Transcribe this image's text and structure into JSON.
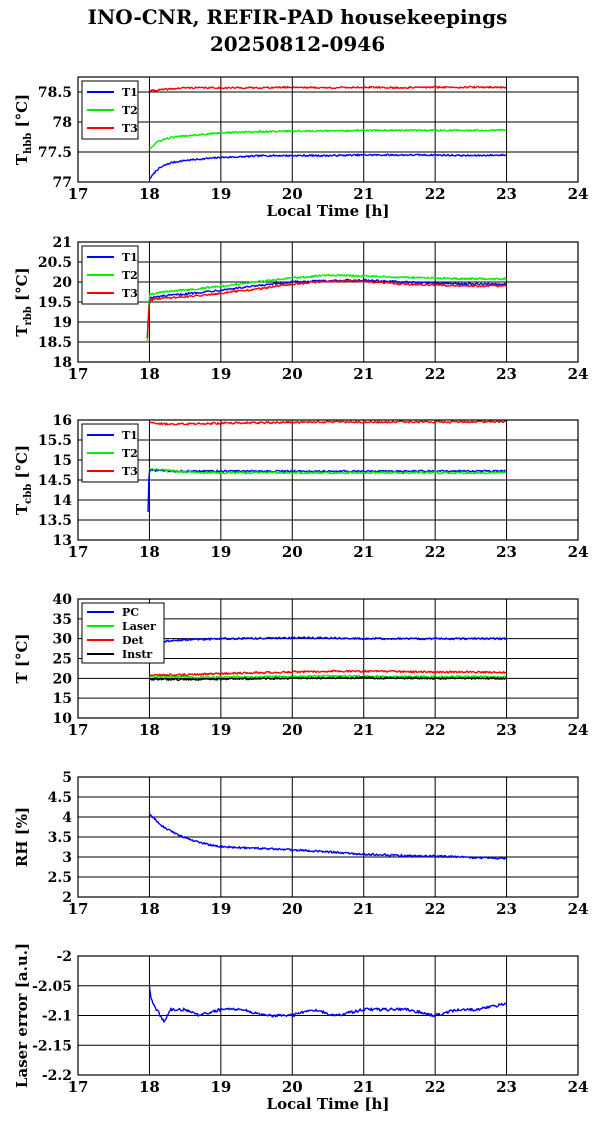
{
  "title": {
    "line1": "INO-CNR, REFIR-PAD housekeepings",
    "line2": "20250812-0946"
  },
  "colors": {
    "blue": "#0000ff",
    "green": "#00ee00",
    "red": "#ff0000",
    "black": "#000000"
  },
  "chart_data": [
    {
      "type": "line",
      "ylabel_main": "T",
      "ylabel_sub": "hbb",
      "ylabel_unit": "[°C]",
      "xlabel": "Local Time [h]",
      "xlim": [
        17,
        24
      ],
      "ylim": [
        77,
        78.75
      ],
      "xticks": [
        "17",
        "18",
        "19",
        "20",
        "21",
        "22",
        "23",
        "24"
      ],
      "yticks": [
        77,
        77.5,
        78,
        78.5
      ],
      "ytick_labels": [
        "77",
        "77.5",
        "78",
        "78.5"
      ],
      "grid": true,
      "legend": "top-left",
      "series": [
        {
          "name": "T1",
          "color": "#0000ff",
          "x": [
            18.0,
            18.05,
            18.1,
            18.2,
            18.3,
            18.5,
            18.7,
            19.0,
            19.3,
            19.6,
            20.0,
            20.5,
            21.0,
            21.5,
            22.0,
            22.5,
            23.0
          ],
          "y": [
            77.05,
            77.12,
            77.2,
            77.27,
            77.32,
            77.36,
            77.38,
            77.41,
            77.42,
            77.44,
            77.44,
            77.44,
            77.45,
            77.45,
            77.45,
            77.44,
            77.45
          ]
        },
        {
          "name": "T2",
          "color": "#00ee00",
          "x": [
            18.0,
            18.05,
            18.1,
            18.2,
            18.3,
            18.5,
            18.7,
            19.0,
            19.3,
            19.6,
            20.0,
            20.5,
            21.0,
            21.5,
            22.0,
            22.5,
            23.0
          ],
          "y": [
            77.55,
            77.6,
            77.66,
            77.71,
            77.74,
            77.77,
            77.79,
            77.82,
            77.83,
            77.84,
            77.85,
            77.85,
            77.86,
            77.86,
            77.86,
            77.86,
            77.87
          ]
        },
        {
          "name": "T3",
          "color": "#ff0000",
          "x": [
            18.0,
            18.5,
            19.0,
            19.5,
            20.0,
            20.5,
            21.0,
            21.5,
            22.0,
            22.5,
            23.0
          ],
          "y": [
            78.52,
            78.57,
            78.57,
            78.57,
            78.58,
            78.57,
            78.58,
            78.57,
            78.58,
            78.58,
            78.58
          ]
        }
      ]
    },
    {
      "type": "line",
      "ylabel_main": "T",
      "ylabel_sub": "rbb",
      "ylabel_unit": "[°C]",
      "xlabel": "",
      "xlim": [
        17,
        24
      ],
      "ylim": [
        18,
        21
      ],
      "xticks": [
        "17",
        "18",
        "19",
        "20",
        "21",
        "22",
        "23",
        "24"
      ],
      "yticks": [
        18,
        18.5,
        19,
        19.5,
        20,
        20.5,
        21
      ],
      "ytick_labels": [
        "18",
        "18.5",
        "19",
        "19.5",
        "20",
        "20.5",
        "21"
      ],
      "grid": true,
      "legend": "top-left",
      "series": [
        {
          "name": "T1",
          "color": "#0000ff",
          "x": [
            17.97,
            17.99,
            18.0,
            18.2,
            18.5,
            19.0,
            19.5,
            20.0,
            20.5,
            21.0,
            21.5,
            22.0,
            22.5,
            23.0
          ],
          "y": [
            18.6,
            19.3,
            19.6,
            19.65,
            19.7,
            19.8,
            19.9,
            20.0,
            20.03,
            20.05,
            20.0,
            19.97,
            19.95,
            19.95
          ]
        },
        {
          "name": "T2",
          "color": "#00ee00",
          "x": [
            17.97,
            17.99,
            18.0,
            18.2,
            18.5,
            19.0,
            19.5,
            20.0,
            20.5,
            21.0,
            21.5,
            22.0,
            22.5,
            23.0
          ],
          "y": [
            18.5,
            19.4,
            19.7,
            19.75,
            19.8,
            19.9,
            20.0,
            20.1,
            20.17,
            20.15,
            20.12,
            20.1,
            20.08,
            20.08
          ]
        },
        {
          "name": "T3",
          "color": "#ff0000",
          "x": [
            17.97,
            17.99,
            18.0,
            18.2,
            18.5,
            19.0,
            19.5,
            20.0,
            20.5,
            21.0,
            21.5,
            22.0,
            22.5,
            23.0
          ],
          "y": [
            18.6,
            19.2,
            19.55,
            19.6,
            19.63,
            19.72,
            19.82,
            19.95,
            20.02,
            20.02,
            19.95,
            19.92,
            19.9,
            19.9
          ]
        }
      ]
    },
    {
      "type": "line",
      "ylabel_main": "T",
      "ylabel_sub": "cbb",
      "ylabel_unit": "[°C]",
      "xlabel": "",
      "xlim": [
        17,
        24
      ],
      "ylim": [
        13,
        16
      ],
      "xticks": [
        "17",
        "18",
        "19",
        "20",
        "21",
        "22",
        "23",
        "24"
      ],
      "yticks": [
        13,
        13.5,
        14,
        14.5,
        15,
        15.5,
        16
      ],
      "ytick_labels": [
        "13",
        "13.5",
        "14",
        "14.5",
        "15",
        "15.5",
        "16"
      ],
      "grid": true,
      "legend": "top-left",
      "series": [
        {
          "name": "T1",
          "color": "#0000ff",
          "x": [
            17.98,
            17.99,
            18.0,
            18.2,
            18.5,
            19.0,
            19.5,
            20.0,
            20.5,
            21.0,
            21.5,
            22.0,
            22.5,
            23.0
          ],
          "y": [
            13.7,
            14.5,
            14.75,
            14.72,
            14.72,
            14.72,
            14.72,
            14.72,
            14.72,
            14.72,
            14.72,
            14.72,
            14.72,
            14.72
          ]
        },
        {
          "name": "T2",
          "color": "#00ee00",
          "x": [
            18.0,
            18.2,
            18.5,
            19.0,
            19.5,
            20.0,
            20.5,
            21.0,
            21.5,
            22.0,
            22.5,
            23.0
          ],
          "y": [
            14.78,
            14.75,
            14.7,
            14.68,
            14.68,
            14.68,
            14.68,
            14.68,
            14.68,
            14.68,
            14.68,
            14.68
          ]
        },
        {
          "name": "T3",
          "color": "#ff0000",
          "x": [
            18.0,
            18.2,
            18.5,
            19.0,
            19.5,
            20.0,
            20.5,
            21.0,
            21.5,
            22.0,
            22.5,
            23.0
          ],
          "y": [
            15.95,
            15.9,
            15.9,
            15.92,
            15.93,
            15.94,
            15.95,
            15.95,
            15.95,
            15.95,
            15.95,
            15.96
          ]
        }
      ]
    },
    {
      "type": "line",
      "ylabel_main": "T [°C]",
      "ylabel_sub": "",
      "ylabel_unit": "",
      "xlabel": "",
      "xlim": [
        17,
        24
      ],
      "ylim": [
        10,
        40
      ],
      "xticks": [
        "17",
        "18",
        "19",
        "20",
        "21",
        "22",
        "23",
        "24"
      ],
      "yticks": [
        10,
        15,
        20,
        25,
        30,
        35,
        40
      ],
      "ytick_labels": [
        "10",
        "15",
        "20",
        "25",
        "30",
        "35",
        "40"
      ],
      "grid": true,
      "legend": "top-left",
      "series": [
        {
          "name": "PC",
          "color": "#0000ff",
          "x": [
            18.0,
            18.3,
            18.6,
            19.0,
            19.5,
            20.0,
            20.5,
            21.0,
            21.5,
            22.0,
            22.5,
            23.0
          ],
          "y": [
            29.0,
            29.5,
            29.8,
            30.0,
            30.1,
            30.2,
            30.2,
            30.0,
            30.0,
            30.0,
            30.0,
            30.0
          ]
        },
        {
          "name": "Laser",
          "color": "#00ee00",
          "x": [
            18.0,
            18.5,
            19.0,
            19.5,
            20.0,
            20.5,
            21.0,
            21.5,
            22.0,
            22.5,
            23.0
          ],
          "y": [
            20.5,
            20.3,
            20.3,
            20.4,
            20.5,
            20.6,
            20.5,
            20.4,
            20.4,
            20.4,
            20.3
          ]
        },
        {
          "name": "Det",
          "color": "#ff0000",
          "x": [
            18.0,
            18.5,
            19.0,
            19.5,
            20.0,
            20.5,
            21.0,
            21.5,
            22.0,
            22.5,
            23.0
          ],
          "y": [
            20.8,
            20.9,
            21.2,
            21.4,
            21.6,
            21.8,
            21.8,
            21.7,
            21.6,
            21.6,
            21.5
          ]
        },
        {
          "name": "Instr",
          "color": "#000000",
          "x": [
            18.0,
            18.5,
            19.0,
            19.5,
            20.0,
            20.5,
            21.0,
            21.5,
            22.0,
            22.5,
            23.0
          ],
          "y": [
            19.8,
            19.7,
            19.8,
            19.9,
            20.0,
            20.1,
            20.1,
            20.1,
            20.0,
            20.0,
            20.0
          ]
        }
      ]
    },
    {
      "type": "line",
      "ylabel_main": "RH [%]",
      "ylabel_sub": "",
      "ylabel_unit": "",
      "xlabel": "",
      "xlim": [
        17,
        24
      ],
      "ylim": [
        2,
        5
      ],
      "xticks": [
        "17",
        "18",
        "19",
        "20",
        "21",
        "22",
        "23",
        "24"
      ],
      "yticks": [
        2,
        2.5,
        3,
        3.5,
        4,
        4.5,
        5
      ],
      "ytick_labels": [
        "2",
        "2.5",
        "3",
        "3.5",
        "4",
        "4.5",
        "5"
      ],
      "grid": true,
      "legend": "none",
      "series": [
        {
          "name": "",
          "color": "#0000ff",
          "x": [
            18.0,
            18.1,
            18.2,
            18.4,
            18.6,
            18.8,
            19.0,
            19.3,
            19.6,
            20.0,
            20.5,
            21.0,
            21.5,
            22.0,
            22.5,
            23.0
          ],
          "y": [
            4.08,
            3.9,
            3.75,
            3.55,
            3.42,
            3.32,
            3.26,
            3.23,
            3.21,
            3.18,
            3.13,
            3.07,
            3.04,
            3.02,
            2.99,
            2.96
          ]
        }
      ]
    },
    {
      "type": "line",
      "ylabel_main": "Laser error [a.u.]",
      "ylabel_sub": "",
      "ylabel_unit": "",
      "xlabel": "Local Time [h]",
      "xlim": [
        17,
        24
      ],
      "ylim": [
        -2.2,
        -2.0
      ],
      "xticks": [
        "17",
        "18",
        "19",
        "20",
        "21",
        "22",
        "23",
        "24"
      ],
      "yticks": [
        -2.2,
        -2.15,
        -2.1,
        -2.05,
        -2.0
      ],
      "ytick_labels": [
        "-2.2",
        "-2.15",
        "-2.1",
        "-2.05",
        "-2"
      ],
      "grid": true,
      "legend": "none",
      "series": [
        {
          "name": "",
          "color": "#0000ff",
          "x": [
            18.0,
            18.02,
            18.05,
            18.1,
            18.15,
            18.2,
            18.3,
            18.5,
            18.7,
            19.0,
            19.3,
            19.6,
            20.0,
            20.3,
            20.6,
            21.0,
            21.3,
            21.6,
            22.0,
            22.3,
            22.6,
            23.0
          ],
          "y": [
            -2.05,
            -2.07,
            -2.08,
            -2.09,
            -2.1,
            -2.11,
            -2.09,
            -2.09,
            -2.1,
            -2.09,
            -2.09,
            -2.1,
            -2.1,
            -2.09,
            -2.1,
            -2.09,
            -2.09,
            -2.09,
            -2.1,
            -2.09,
            -2.09,
            -2.08
          ]
        }
      ]
    }
  ]
}
